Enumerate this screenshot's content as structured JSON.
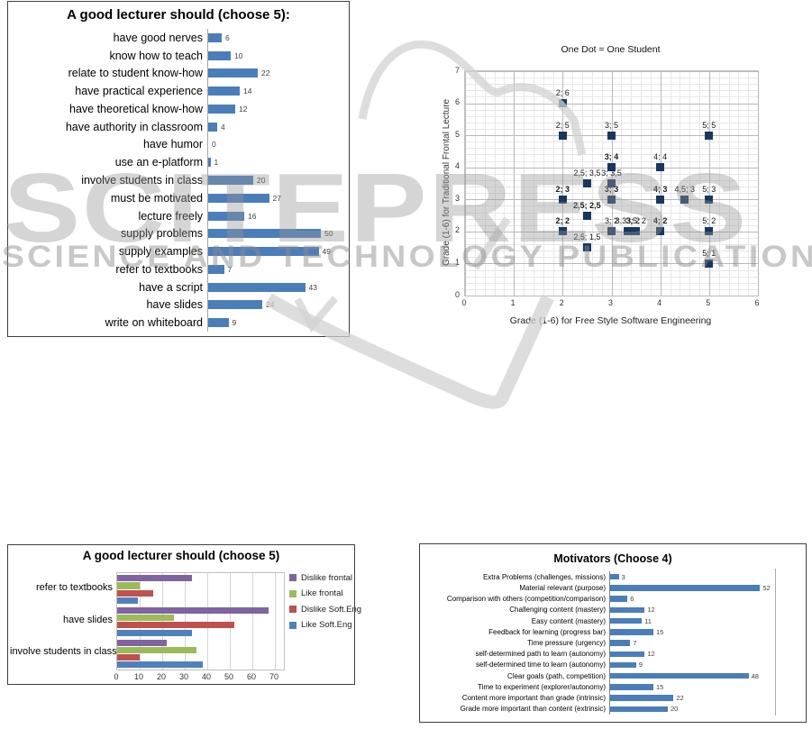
{
  "watermark": {
    "line1": "SCITEPRESS",
    "line2": "SCIENCE AND TECHNOLOGY PUBLICATIONS",
    "color": "#c8c8c8"
  },
  "chart_data": [
    {
      "id": "lecturer-should-full",
      "type": "bar",
      "orientation": "horizontal",
      "title": "A good lecturer should (choose 5):",
      "categories": [
        "have good nerves",
        "know how to teach",
        "relate to student know-how",
        "have practical experience",
        "have theoretical know-how",
        "have authority in classroom",
        "have humor",
        "use an e-platform",
        "involve students in class",
        "must be motivated",
        "lecture freely",
        "supply problems",
        "supply examples",
        "refer to textbooks",
        "have a script",
        "have slides",
        "write on whiteboard"
      ],
      "values": [
        6,
        10,
        22,
        14,
        12,
        4,
        0,
        1,
        20,
        27,
        16,
        50,
        49,
        7,
        43,
        24,
        9
      ],
      "bar_color": "#4a7ebb",
      "xlim": [
        0,
        60
      ],
      "value_labels": true,
      "legend": "none"
    },
    {
      "id": "grades-scatter",
      "type": "scatter",
      "title": "One Dot = One Student",
      "xlabel": "Grade (1-6) for Free Style Software Engineering",
      "ylabel": "Grade (1-6) for Traditional Frontal Lecture",
      "xlim": [
        0,
        6
      ],
      "ylim": [
        0,
        7
      ],
      "xticks": [
        0,
        1,
        2,
        3,
        4,
        5,
        6
      ],
      "yticks": [
        0,
        1,
        2,
        3,
        4,
        5,
        6,
        7
      ],
      "grid": "major and minor",
      "minor_step": 0.2,
      "marker": "square",
      "marker_color": "#17375e",
      "points": [
        {
          "x": 2,
          "y": 6,
          "label": "2; 6",
          "bold": false
        },
        {
          "x": 2,
          "y": 5,
          "label": "2; 5",
          "bold": false
        },
        {
          "x": 3,
          "y": 5,
          "label": "3; 5",
          "bold": false
        },
        {
          "x": 5,
          "y": 5,
          "label": "5; 5",
          "bold": false
        },
        {
          "x": 3,
          "y": 4,
          "label": "3; 4",
          "bold": true
        },
        {
          "x": 4,
          "y": 4,
          "label": "4; 4",
          "bold": false
        },
        {
          "x": 2.5,
          "y": 3.5,
          "label": "2,5; 3,5",
          "bold": false
        },
        {
          "x": 3,
          "y": 3.5,
          "label": "3; 3,5",
          "bold": false
        },
        {
          "x": 2,
          "y": 3,
          "label": "2; 3",
          "bold": true
        },
        {
          "x": 3,
          "y": 3,
          "label": "3; 3",
          "bold": true
        },
        {
          "x": 4,
          "y": 3,
          "label": "4; 3",
          "bold": true
        },
        {
          "x": 4.5,
          "y": 3,
          "label": "4,5; 3",
          "bold": false
        },
        {
          "x": 5,
          "y": 3,
          "label": "5; 3",
          "bold": false
        },
        {
          "x": 2.5,
          "y": 2.5,
          "label": "2,5; 2,5",
          "bold": true
        },
        {
          "x": 2,
          "y": 2,
          "label": "2; 2",
          "bold": true
        },
        {
          "x": 3,
          "y": 2,
          "label": "3; 2",
          "bold": false
        },
        {
          "x": 3.33,
          "y": 2,
          "label": "3,33; 2",
          "bold": false
        },
        {
          "x": 3.5,
          "y": 2,
          "label": "3,5; 2",
          "bold": false
        },
        {
          "x": 4,
          "y": 2,
          "label": "4; 2",
          "bold": true
        },
        {
          "x": 5,
          "y": 2,
          "label": "5; 2",
          "bold": false
        },
        {
          "x": 2.5,
          "y": 1.5,
          "label": "2,5; 1,5",
          "bold": false
        },
        {
          "x": 5,
          "y": 1,
          "label": "5; 1",
          "bold": false
        }
      ]
    },
    {
      "id": "lecturer-should-grouped",
      "type": "bar",
      "orientation": "horizontal",
      "grouped": true,
      "title": "A good lecturer should (choose 5)",
      "categories": [
        "refer to textbooks",
        "have slides",
        "involve students in class"
      ],
      "series": [
        {
          "name": "Dislike frontal",
          "color": "#8064a2",
          "values": [
            33,
            67,
            22
          ]
        },
        {
          "name": "Like frontal",
          "color": "#9bbb59",
          "values": [
            10,
            25,
            35
          ]
        },
        {
          "name": "Dislike Soft.Eng",
          "color": "#c0504d",
          "values": [
            16,
            52,
            10
          ]
        },
        {
          "name": "Like Soft.Eng",
          "color": "#4f81bd",
          "values": [
            9,
            33,
            38
          ]
        }
      ],
      "xticks": [
        0,
        10,
        20,
        30,
        40,
        50,
        60,
        70
      ],
      "xlim": [
        0,
        74
      ],
      "legend_position": "right"
    },
    {
      "id": "motivators",
      "type": "bar",
      "orientation": "horizontal",
      "title": "Motivators (Choose 4)",
      "categories": [
        "Extra Problems (challenges, missions)",
        "Material relevant (purpose)",
        "Comparison with others (competition/comparison)",
        "Challenging content (mastery)",
        "Easy content (mastery)",
        "Feedback for learning (progress bar)",
        "Time pressure (urgency)",
        "self-determined path to learn (autonomy)",
        "self-determined time to learn (autonomy)",
        "Clear goals (path, competition)",
        "Time to experiment (explorer/autonomy)",
        "Content more important than grade (intrinsic)",
        "Grade more important than content (extrinsic)"
      ],
      "values": [
        3,
        52,
        6,
        12,
        11,
        15,
        7,
        12,
        9,
        48,
        15,
        22,
        20
      ],
      "bar_color": "#4a7ebb",
      "value_labels": true,
      "legend": "none"
    }
  ]
}
